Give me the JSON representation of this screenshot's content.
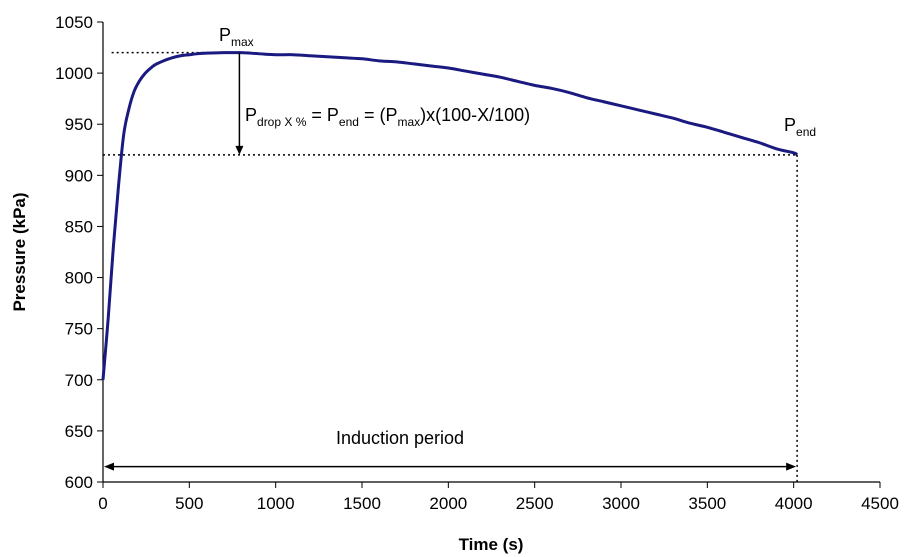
{
  "chart_data": {
    "type": "line",
    "title": "",
    "xlabel": "Time (s)",
    "ylabel": "Pressure (kPa)",
    "xlim": [
      0,
      4500
    ],
    "ylim": [
      600,
      1050
    ],
    "xticks": [
      0,
      500,
      1000,
      1500,
      2000,
      2500,
      3000,
      3500,
      4000,
      4500
    ],
    "yticks": [
      600,
      650,
      700,
      750,
      800,
      850,
      900,
      950,
      1000,
      1050
    ],
    "grid": false,
    "legend": "none",
    "series": [
      {
        "color": "#1a1a80",
        "x": [
          0,
          30,
          60,
          90,
          120,
          150,
          180,
          210,
          240,
          270,
          300,
          350,
          400,
          450,
          500,
          550,
          600,
          700,
          800,
          900,
          1000,
          1100,
          1200,
          1300,
          1400,
          1500,
          1600,
          1700,
          1800,
          1900,
          2000,
          2100,
          2200,
          2300,
          2400,
          2500,
          2600,
          2700,
          2800,
          2900,
          3000,
          3100,
          3200,
          3300,
          3400,
          3500,
          3600,
          3700,
          3800,
          3900,
          4000,
          4020
        ],
        "y": [
          700,
          760,
          830,
          890,
          940,
          965,
          982,
          992,
          999,
          1004,
          1008,
          1012,
          1015,
          1017,
          1018,
          1019,
          1019.5,
          1020,
          1020,
          1019,
          1018,
          1018,
          1017,
          1016,
          1015,
          1014,
          1012,
          1011,
          1009,
          1007,
          1005,
          1002,
          999,
          996,
          992,
          988,
          985,
          981,
          976,
          972,
          968,
          964,
          960,
          956,
          951,
          947,
          942,
          937,
          932,
          926,
          922,
          920
        ]
      }
    ],
    "reference_lines": {
      "p_max": 1020,
      "p_end": 920,
      "end_time": 4020,
      "drop_arrow_time": 790
    },
    "annotations": {
      "p_max": {
        "main": "P",
        "sub": "max"
      },
      "p_end": {
        "main": "P",
        "sub": "end"
      },
      "formula": {
        "p1": "P",
        "p1_sub": "drop X %",
        "eq1": " = P",
        "p2_sub": "end",
        "eq2": " = (P",
        "p3_sub": "max",
        "tail": ")x(100-X/100)"
      },
      "induction": "Induction period"
    }
  }
}
